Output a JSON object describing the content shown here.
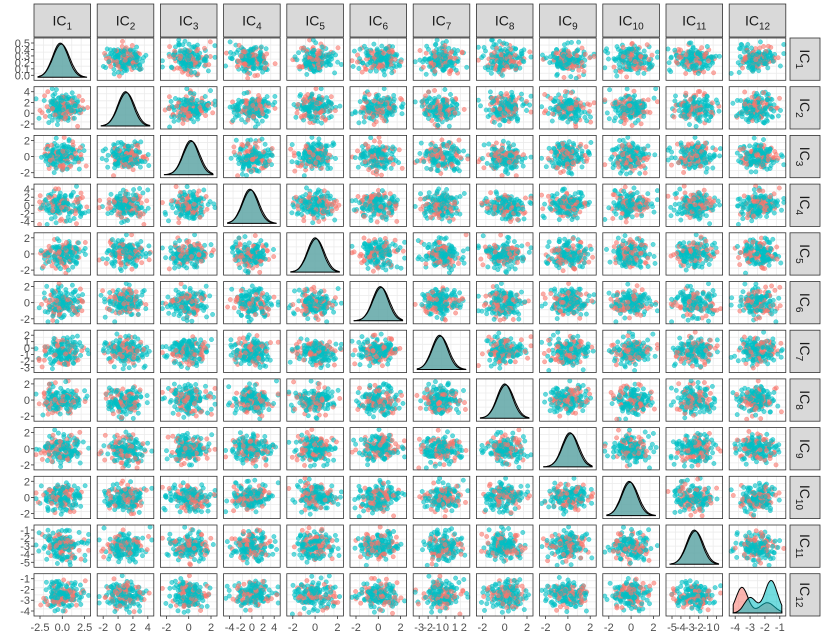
{
  "chart_data": {
    "type": "scatter-matrix",
    "title": "",
    "variables": [
      "IC1",
      "IC2",
      "IC3",
      "IC4",
      "IC5",
      "IC6",
      "IC7",
      "IC8",
      "IC9",
      "IC10",
      "IC11",
      "IC12"
    ],
    "strip_labels": [
      {
        "base": "IC",
        "sub": "1"
      },
      {
        "base": "IC",
        "sub": "2"
      },
      {
        "base": "IC",
        "sub": "3"
      },
      {
        "base": "IC",
        "sub": "4"
      },
      {
        "base": "IC",
        "sub": "5"
      },
      {
        "base": "IC",
        "sub": "6"
      },
      {
        "base": "IC",
        "sub": "7"
      },
      {
        "base": "IC",
        "sub": "8"
      },
      {
        "base": "IC",
        "sub": "9"
      },
      {
        "base": "IC",
        "sub": "10"
      },
      {
        "base": "IC",
        "sub": "11"
      },
      {
        "base": "IC",
        "sub": "12"
      }
    ],
    "groups": [
      {
        "color": "#F8766D"
      },
      {
        "color": "#00BFC4"
      }
    ],
    "diagonal": "density",
    "off_diagonal": "scatter",
    "density_fill": "#5FA6A6",
    "grid": true,
    "x_ticks": [
      [
        "-2.5",
        "0.0",
        "2.5"
      ],
      [
        "-2",
        "0",
        "2",
        "4"
      ],
      [
        "-2",
        "0",
        "2"
      ],
      [
        "-4",
        "-2",
        "0",
        "2",
        "4"
      ],
      [
        "-2",
        "0",
        "2"
      ],
      [
        "-2",
        "0",
        "2"
      ],
      [
        "-3",
        "-2",
        "-1",
        "0",
        "1",
        "2"
      ],
      [
        "-2",
        "0",
        "2"
      ],
      [
        "-2",
        "0",
        "2"
      ],
      [
        "-2",
        "0",
        "2"
      ],
      [
        "-5",
        "-4",
        "-3",
        "-2",
        "-1",
        "0"
      ],
      [
        "-4",
        "-3",
        "-2",
        "-1"
      ]
    ],
    "y_ticks": {
      "IC1": [
        "0.5",
        "0.4",
        "0.3",
        "0.2",
        "0.1",
        "0.0"
      ],
      "IC2": [
        "4",
        "2",
        "0",
        "-2"
      ],
      "IC3": [
        "2",
        "0",
        "-2"
      ],
      "IC4": [
        "4",
        "2",
        "0",
        "-2",
        "-4"
      ],
      "IC5": [
        "2",
        "0",
        "-2"
      ],
      "IC6": [
        "2",
        "0",
        "-2"
      ],
      "IC7": [
        "2",
        "1",
        "0",
        "-1",
        "-2",
        "-3"
      ],
      "IC8": [
        "2",
        "0",
        "-2"
      ],
      "IC9": [
        "2",
        "0",
        "-2"
      ],
      "IC10": [
        "2",
        "0",
        "-2"
      ],
      "IC11": [
        "-1",
        "-2",
        "-3",
        "-4",
        "-5"
      ],
      "IC12": [
        "-1",
        "-2",
        "-3",
        "-4"
      ]
    }
  }
}
